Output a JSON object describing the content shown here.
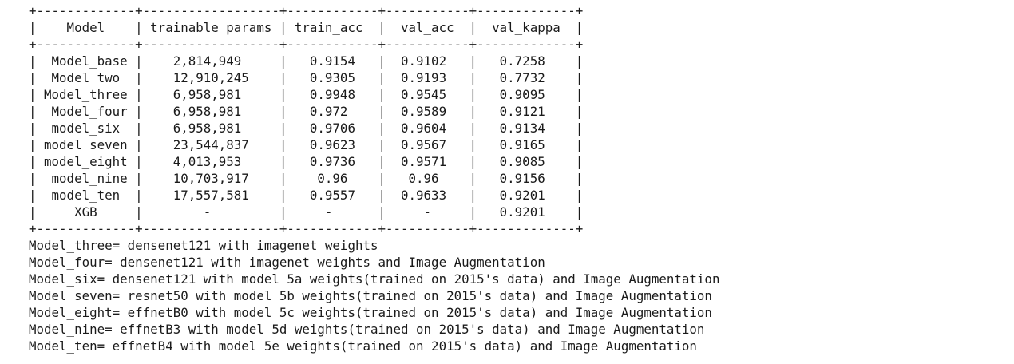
{
  "table": {
    "rule_top": "+-------------+------------------+------------+-----------+-------------+",
    "header_line": "|    Model    | trainable params | train_acc  |  val_acc  |  val_kappa  |",
    "rule_mid": "+-------------+------------------+------------+-----------+-------------+",
    "columns": [
      "Model",
      "trainable params",
      "train_acc",
      "val_acc",
      "val_kappa"
    ],
    "rows": [
      {
        "line": "|  Model_base |    2,814,949     |   0.9154   |  0.9102   |   0.7258    |",
        "cells": [
          "Model_base",
          "2,814,949",
          "0.9154",
          "0.9102",
          "0.7258"
        ]
      },
      {
        "line": "|  Model_two  |    12,910,245    |   0.9305   |  0.9193   |   0.7732    |",
        "cells": [
          "Model_two",
          "12,910,245",
          "0.9305",
          "0.9193",
          "0.7732"
        ]
      },
      {
        "line": "| Model_three |    6,958,981     |   0.9948   |  0.9545   |   0.9095    |",
        "cells": [
          "Model_three",
          "6,958,981",
          "0.9948",
          "0.9545",
          "0.9095"
        ]
      },
      {
        "line": "|  Model_four |    6,958,981     |   0.972    |  0.9589   |   0.9121    |",
        "cells": [
          "Model_four",
          "6,958,981",
          "0.972",
          "0.9589",
          "0.9121"
        ]
      },
      {
        "line": "|  model_six  |    6,958,981     |   0.9706   |  0.9604   |   0.9134    |",
        "cells": [
          "model_six",
          "6,958,981",
          "0.9706",
          "0.9604",
          "0.9134"
        ]
      },
      {
        "line": "| model_seven |    23,544,837    |   0.9623   |  0.9567   |   0.9165    |",
        "cells": [
          "model_seven",
          "23,544,837",
          "0.9623",
          "0.9567",
          "0.9165"
        ]
      },
      {
        "line": "| model_eight |    4,013,953     |   0.9736   |  0.9571   |   0.9085    |",
        "cells": [
          "model_eight",
          "4,013,953",
          "0.9736",
          "0.9571",
          "0.9085"
        ]
      },
      {
        "line": "|  model_nine |    10,703,917    |    0.96    |   0.96    |   0.9156    |",
        "cells": [
          "model_nine",
          "10,703,917",
          "0.96",
          "0.96",
          "0.9156"
        ]
      },
      {
        "line": "|  model_ten  |    17,557,581    |   0.9557   |  0.9633   |   0.9201    |",
        "cells": [
          "model_ten",
          "17,557,581",
          "0.9557",
          "0.9633",
          "0.9201"
        ]
      },
      {
        "line": "|     XGB     |        -         |     -      |     -     |   0.9201    |",
        "cells": [
          "XGB",
          "-",
          "-",
          "-",
          "0.9201"
        ]
      }
    ],
    "rule_bottom": "+-------------+------------------+------------+-----------+-------------+"
  },
  "notes": [
    "Model_three= densenet121 with imagenet weights",
    "Model_four= densenet121 with imagenet weights and Image Augmentation",
    "Model_six= densenet121 with model 5a weights(trained on 2015's data) and Image Augmentation",
    "Model_seven= resnet50 with model 5b weights(trained on 2015's data) and Image Augmentation",
    "Model_eight= effnetB0 with model 5c weights(trained on 2015's data) and Image Augmentation",
    "Model_nine= effnetB3 with model 5d weights(trained on 2015's data) and Image Augmentation",
    "Model_ten= effnetB4 with model 5e weights(trained on 2015's data) and Image Augmentation"
  ]
}
